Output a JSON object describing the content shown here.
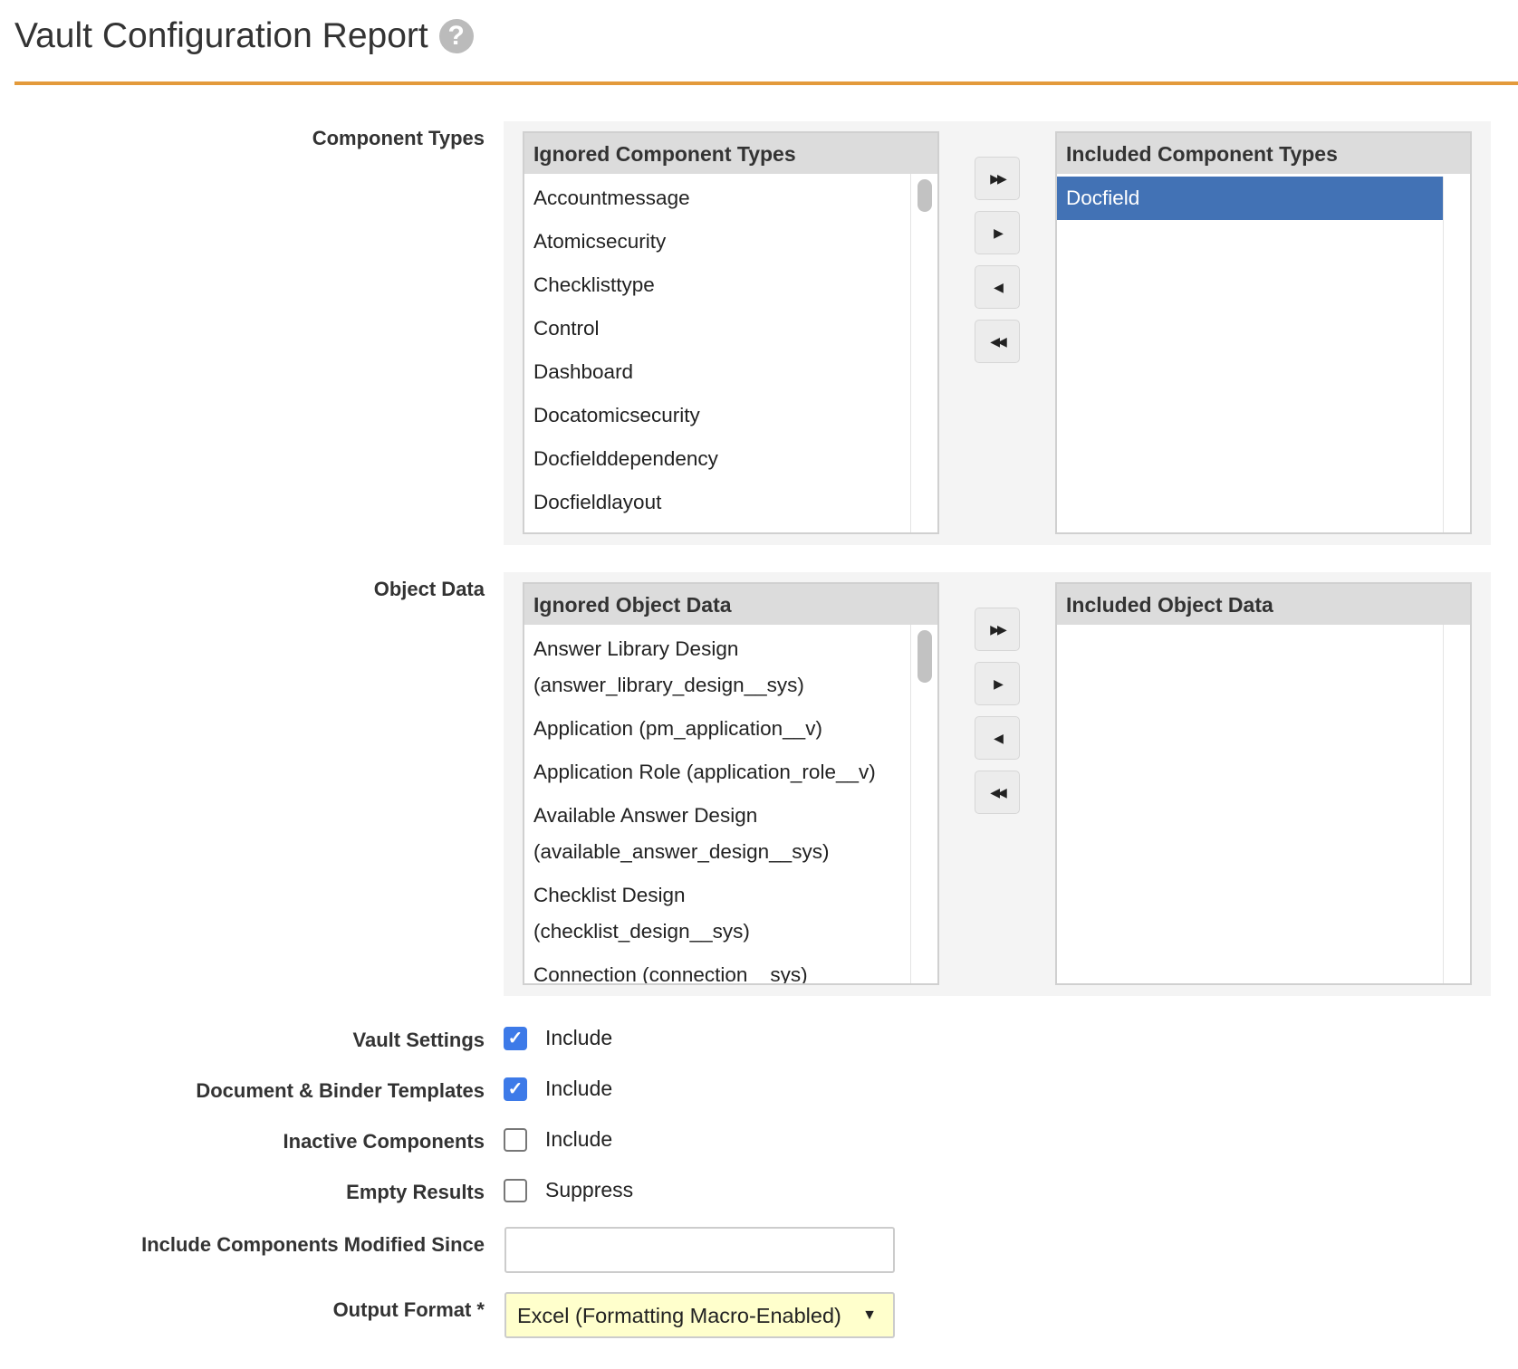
{
  "title": "Vault Configuration Report",
  "component_types": {
    "label": "Component Types",
    "ignored_header": "Ignored Component Types",
    "included_header": "Included Component Types",
    "ignored": [
      "Accountmessage",
      "Atomicsecurity",
      "Checklisttype",
      "Control",
      "Dashboard",
      "Docatomicsecurity",
      "Docfielddependency",
      "Docfieldlayout"
    ],
    "included": [
      "Docfield"
    ]
  },
  "object_data": {
    "label": "Object Data",
    "ignored_header": "Ignored Object Data",
    "included_header": "Included Object Data",
    "ignored": [
      "Answer Library Design (answer_library_design__sys)",
      "Application (pm_application__v)",
      "Application Role (application_role__v)",
      "Available Answer Design (available_answer_design__sys)",
      "Checklist Design (checklist_design__sys)",
      "Connection (connection__sys)"
    ],
    "included": []
  },
  "move_buttons": {
    "add_all": "▶▶",
    "add": "▶",
    "remove": "◀",
    "remove_all": "◀◀"
  },
  "options": [
    {
      "label": "Vault Settings",
      "text": "Include",
      "checked": true
    },
    {
      "label": "Document & Binder Templates",
      "text": "Include",
      "checked": true
    },
    {
      "label": "Inactive Components",
      "text": "Include",
      "checked": false
    },
    {
      "label": "Empty Results",
      "text": "Suppress",
      "checked": false
    }
  ],
  "modified_since": {
    "label": "Include Components Modified Since",
    "value": ""
  },
  "output_format": {
    "label": "Output Format *",
    "value": "Excel (Formatting Macro-Enabled)"
  },
  "colors": {
    "accent": "#e39a3b",
    "selected": "#4272b5",
    "checkbox": "#3d7ae8",
    "select_bg": "#ffffcc"
  }
}
